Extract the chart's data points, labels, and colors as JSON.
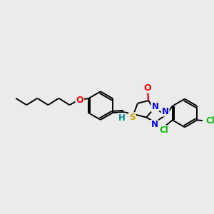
{
  "bg_color": "#ebebeb",
  "bond_color": "#000000",
  "atom_colors": {
    "O": "#ff0000",
    "N": "#0000ff",
    "S": "#ccaa00",
    "Cl": "#00bb00",
    "H": "#008888",
    "C": "#000000"
  },
  "figsize": [
    3.0,
    3.0
  ],
  "dpi": 100
}
